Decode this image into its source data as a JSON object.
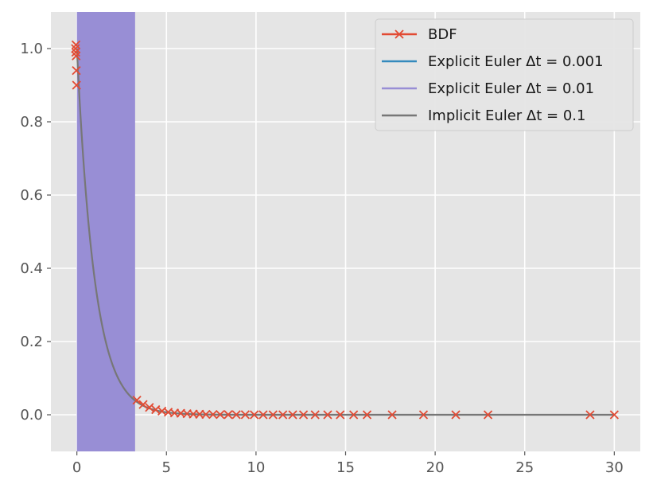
{
  "chart_data": {
    "type": "line",
    "title": "",
    "xlabel": "",
    "ylabel": "",
    "xlim": [
      -1.45,
      31.45
    ],
    "ylim": [
      -0.1,
      1.1
    ],
    "grid": true,
    "background_color": "#E5E5E5",
    "x_ticks": [
      0,
      5,
      10,
      15,
      20,
      25,
      30
    ],
    "x_tick_labels": [
      "0",
      "5",
      "10",
      "15",
      "20",
      "25",
      "30"
    ],
    "y_ticks": [
      0.0,
      0.2,
      0.4,
      0.6,
      0.8,
      1.0
    ],
    "y_tick_labels": [
      "0.0",
      "0.2",
      "0.4",
      "0.6",
      "0.8",
      "1.0"
    ],
    "legend": {
      "location": "top-right",
      "entries": [
        {
          "label": "BDF",
          "color": "#E24A33",
          "marker": "x"
        },
        {
          "label": "Explicit Euler Δt = 0.001",
          "color": "#348ABD"
        },
        {
          "label": "Explicit Euler Δt = 0.01",
          "color": "#988ED5"
        },
        {
          "label": "Implicit Euler Δt = 0.1",
          "color": "#777777"
        }
      ]
    },
    "series": [
      {
        "name": "BDF",
        "color": "#E24A33",
        "marker": "x",
        "points": [
          [
            -0.08,
            1.0
          ],
          [
            -0.06,
            0.99
          ],
          [
            -0.05,
            1.01
          ],
          [
            -0.04,
            0.98
          ],
          [
            -0.03,
            0.94
          ],
          [
            -0.02,
            0.9
          ],
          [
            3.35,
            0.04
          ],
          [
            3.7,
            0.028
          ],
          [
            4.05,
            0.02
          ],
          [
            4.4,
            0.014
          ],
          [
            4.75,
            0.01
          ],
          [
            5.1,
            0.007
          ],
          [
            5.45,
            0.005
          ],
          [
            5.8,
            0.004
          ],
          [
            6.15,
            0.003
          ],
          [
            6.5,
            0.002
          ],
          [
            6.85,
            0.0015
          ],
          [
            7.2,
            0.001
          ],
          [
            7.6,
            0.0008
          ],
          [
            8.0,
            0.0006
          ],
          [
            8.45,
            0.0004
          ],
          [
            8.9,
            0.0003
          ],
          [
            9.4,
            0.0002
          ],
          [
            9.9,
            0.0001
          ],
          [
            10.4,
            0.0001
          ],
          [
            10.95,
            0.0
          ],
          [
            11.5,
            0.0
          ],
          [
            12.05,
            0.0
          ],
          [
            12.65,
            0.0
          ],
          [
            13.3,
            0.0
          ],
          [
            14.0,
            0.0
          ],
          [
            14.7,
            0.0
          ],
          [
            15.45,
            0.0
          ],
          [
            16.2,
            0.0
          ],
          [
            17.6,
            0.0
          ],
          [
            19.35,
            0.0
          ],
          [
            21.15,
            0.0
          ],
          [
            22.95,
            0.0
          ],
          [
            28.65,
            0.0
          ],
          [
            30.0,
            0.0
          ]
        ]
      },
      {
        "name": "Explicit Euler Δt = 0.001",
        "color": "#348ABD",
        "description_values": "hidden beneath Δt = 0.01 band; unstable oscillation between x = 0 and x = 3.25"
      },
      {
        "name": "Explicit Euler Δt = 0.01",
        "color": "#988ED5",
        "band": {
          "x_start": 0.0,
          "x_end": 3.25,
          "y_min": -0.1,
          "y_max": 1.1
        }
      },
      {
        "name": "Implicit Euler Δt = 0.1",
        "color": "#777777",
        "function": "exp(-x)",
        "x_range": [
          0,
          30
        ]
      }
    ]
  }
}
